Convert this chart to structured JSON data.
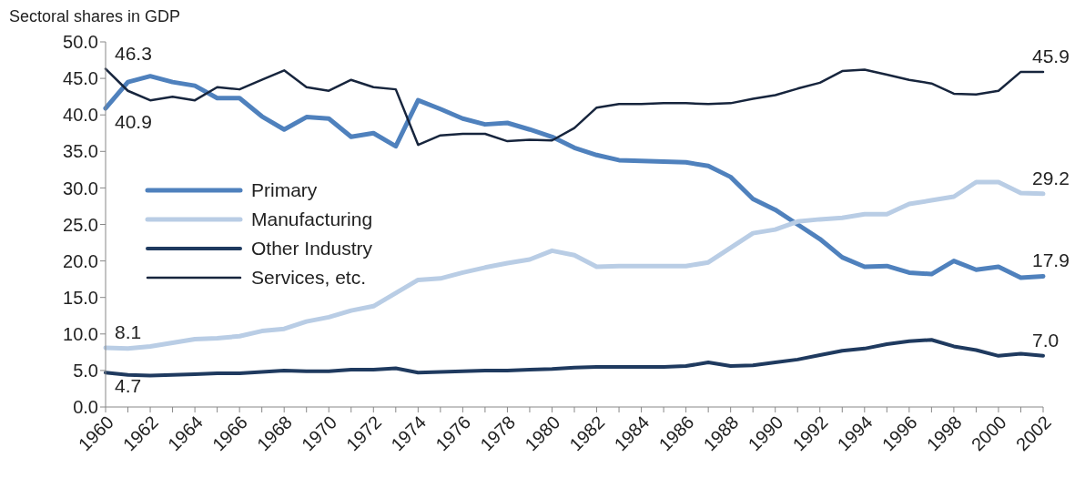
{
  "chart_data": {
    "type": "line",
    "title": "Sectoral shares in GDP",
    "categories": [
      "1960",
      null,
      "1962",
      null,
      "1964",
      null,
      "1966",
      null,
      "1968",
      null,
      "1970",
      null,
      "1972",
      null,
      "1974",
      null,
      "1976",
      null,
      "1978",
      null,
      "1980",
      null,
      "1982",
      null,
      "1984",
      null,
      "1986",
      null,
      "1988",
      null,
      "1990",
      null,
      "1992",
      null,
      "1994",
      null,
      "1996",
      null,
      "1998",
      null,
      "2000",
      null,
      "2002"
    ],
    "series": [
      {
        "name": "Primary",
        "color": "#4f81bd",
        "values": [
          40.9,
          44.5,
          45.3,
          44.5,
          44.0,
          42.3,
          42.3,
          39.8,
          38.0,
          39.7,
          39.5,
          37.0,
          37.5,
          35.7,
          42.0,
          40.8,
          39.5,
          38.7,
          38.9,
          38.0,
          37.0,
          35.5,
          34.5,
          33.8,
          33.7,
          33.6,
          33.5,
          33.0,
          31.5,
          28.5,
          27.0,
          25.0,
          23.0,
          20.5,
          19.2,
          19.3,
          18.4,
          18.2,
          20.0,
          18.8,
          19.2,
          17.7,
          17.9
        ],
        "value_labels": [
          "40.9",
          null,
          null,
          null,
          null,
          null,
          null,
          null,
          null,
          null,
          null,
          null,
          null,
          null,
          null,
          null,
          null,
          null,
          null,
          null,
          null,
          null,
          null,
          null,
          null,
          null,
          null,
          null,
          null,
          null,
          null,
          null,
          null,
          null,
          null,
          null,
          null,
          null,
          null,
          null,
          null,
          null,
          "17.9"
        ]
      },
      {
        "name": "Manufacturing",
        "color": "#b9cde5",
        "values": [
          8.1,
          8.0,
          8.3,
          8.8,
          9.3,
          9.4,
          9.7,
          10.4,
          10.7,
          11.7,
          12.3,
          13.2,
          13.8,
          15.6,
          17.4,
          17.6,
          18.4,
          19.1,
          19.7,
          20.2,
          21.4,
          20.8,
          19.2,
          19.3,
          19.3,
          19.3,
          19.3,
          19.8,
          21.8,
          23.8,
          24.3,
          25.4,
          25.7,
          25.9,
          26.4,
          26.4,
          27.8,
          28.3,
          28.8,
          30.8,
          30.8,
          29.3,
          29.2
        ],
        "value_labels": [
          "8.1",
          null,
          null,
          null,
          null,
          null,
          null,
          null,
          null,
          null,
          null,
          null,
          null,
          null,
          null,
          null,
          null,
          null,
          null,
          null,
          null,
          null,
          null,
          null,
          null,
          null,
          null,
          null,
          null,
          null,
          null,
          null,
          null,
          null,
          null,
          null,
          null,
          null,
          null,
          null,
          null,
          null,
          "29.2"
        ]
      },
      {
        "name": "Other Industry",
        "color": "#1f3a5f",
        "values": [
          4.7,
          4.4,
          4.3,
          4.4,
          4.5,
          4.6,
          4.6,
          4.8,
          5.0,
          4.9,
          4.9,
          5.1,
          5.1,
          5.3,
          4.7,
          4.8,
          4.9,
          5.0,
          5.0,
          5.1,
          5.2,
          5.4,
          5.5,
          5.5,
          5.5,
          5.5,
          5.6,
          6.1,
          5.6,
          5.7,
          6.1,
          6.5,
          7.1,
          7.7,
          8.0,
          8.6,
          9.0,
          9.2,
          8.3,
          7.8,
          7.0,
          7.3,
          7.0
        ],
        "value_labels": [
          "4.7",
          null,
          null,
          null,
          null,
          null,
          null,
          null,
          null,
          null,
          null,
          null,
          null,
          null,
          null,
          null,
          null,
          null,
          null,
          null,
          null,
          null,
          null,
          null,
          null,
          null,
          null,
          null,
          null,
          null,
          null,
          null,
          null,
          null,
          null,
          null,
          null,
          null,
          null,
          null,
          null,
          null,
          "7.0"
        ]
      },
      {
        "name": "Services, etc.",
        "color": "#17253d",
        "values": [
          46.3,
          43.3,
          42.0,
          42.5,
          42.0,
          43.8,
          43.5,
          44.8,
          46.1,
          43.8,
          43.3,
          44.8,
          43.8,
          43.5,
          35.9,
          37.2,
          37.4,
          37.4,
          36.4,
          36.6,
          36.5,
          38.2,
          41.0,
          41.5,
          41.5,
          41.6,
          41.6,
          41.5,
          41.6,
          42.2,
          42.7,
          43.6,
          44.4,
          46.0,
          46.2,
          45.5,
          44.8,
          44.3,
          42.9,
          42.8,
          43.3,
          45.9,
          45.9
        ],
        "value_labels": [
          "46.3",
          null,
          null,
          null,
          null,
          null,
          null,
          null,
          null,
          null,
          null,
          null,
          null,
          null,
          null,
          null,
          null,
          null,
          null,
          null,
          null,
          null,
          null,
          null,
          null,
          null,
          null,
          null,
          null,
          null,
          null,
          null,
          null,
          null,
          null,
          null,
          null,
          null,
          null,
          null,
          null,
          null,
          "45.9"
        ]
      }
    ],
    "ylim": [
      0,
      50
    ],
    "yticks": [
      {
        "value": 0,
        "label": "0.0"
      },
      {
        "value": 5,
        "label": "5.0"
      },
      {
        "value": 10,
        "label": "10.0"
      },
      {
        "value": 15,
        "label": "15.0"
      },
      {
        "value": 20,
        "label": "20.0"
      },
      {
        "value": 25,
        "label": "25.0"
      },
      {
        "value": 30,
        "label": "30.0"
      },
      {
        "value": 35,
        "label": "35.0"
      },
      {
        "value": 40,
        "label": "40.0"
      },
      {
        "value": 45,
        "label": "45.0"
      },
      {
        "value": 50,
        "label": "50.0"
      }
    ],
    "grid": false,
    "legend": "left",
    "marker": "none",
    "line_style": "solid"
  }
}
